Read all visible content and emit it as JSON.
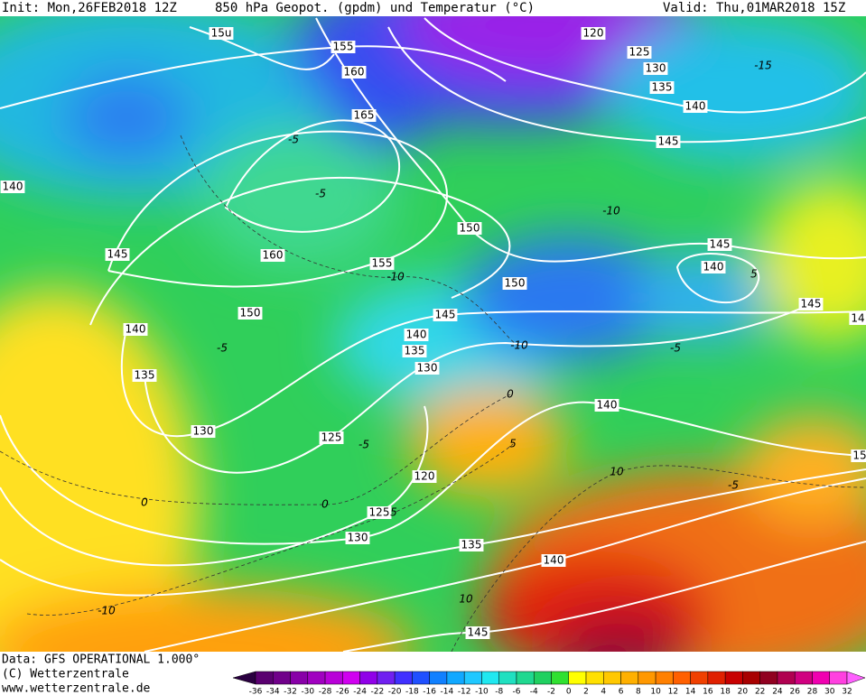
{
  "header": {
    "init": "Init: Mon,26FEB2018 12Z",
    "title": "850 hPa Geopot. (gpdm) und Temperatur (°C)",
    "valid": "Valid: Thu,01MAR2018 15Z"
  },
  "footer": {
    "data_source": "Data: GFS OPERATIONAL 1.000°",
    "copyright": "(C) Wetterzentrale",
    "url": "www.wetterzentrale.de"
  },
  "geopotential_labels": [
    "15u",
    155,
    160,
    165,
    120,
    125,
    130,
    135,
    140,
    145,
    140,
    150,
    160,
    155,
    145,
    150,
    145,
    140,
    145,
    14,
    150,
    140,
    145,
    140,
    135,
    130,
    135,
    140,
    130,
    125,
    120,
    125,
    130,
    135,
    140,
    145,
    15
  ],
  "temperature_labels": [
    -15,
    -5,
    -5,
    -10,
    -10,
    -5,
    -10,
    0,
    5,
    10,
    -5,
    0,
    0,
    5,
    -10,
    10,
    -5,
    -5,
    5
  ],
  "colorbar": {
    "ticks": [
      -36,
      -34,
      -32,
      -30,
      -28,
      -26,
      -24,
      -22,
      -20,
      -18,
      -16,
      -14,
      -12,
      -10,
      -8,
      -6,
      -4,
      -2,
      0,
      2,
      4,
      6,
      8,
      10,
      12,
      14,
      16,
      18,
      20,
      22,
      24,
      26,
      28,
      30,
      32
    ],
    "colors": [
      "#2a0040",
      "#5a0070",
      "#70008a",
      "#8800a8",
      "#a000c0",
      "#b800d8",
      "#d000f0",
      "#9000e8",
      "#7020f0",
      "#4030ff",
      "#2050ff",
      "#1080ff",
      "#10a8ff",
      "#20c8ff",
      "#20e8f0",
      "#20e0c0",
      "#20d890",
      "#20d060",
      "#30e030",
      "#ffff00",
      "#ffe000",
      "#ffc800",
      "#ffb000",
      "#ff9800",
      "#ff8000",
      "#ff6000",
      "#f04000",
      "#e02000",
      "#c80000",
      "#a80000",
      "#900020",
      "#b00050",
      "#d00080",
      "#f000b0",
      "#ff40e0",
      "#ff60ff"
    ]
  }
}
